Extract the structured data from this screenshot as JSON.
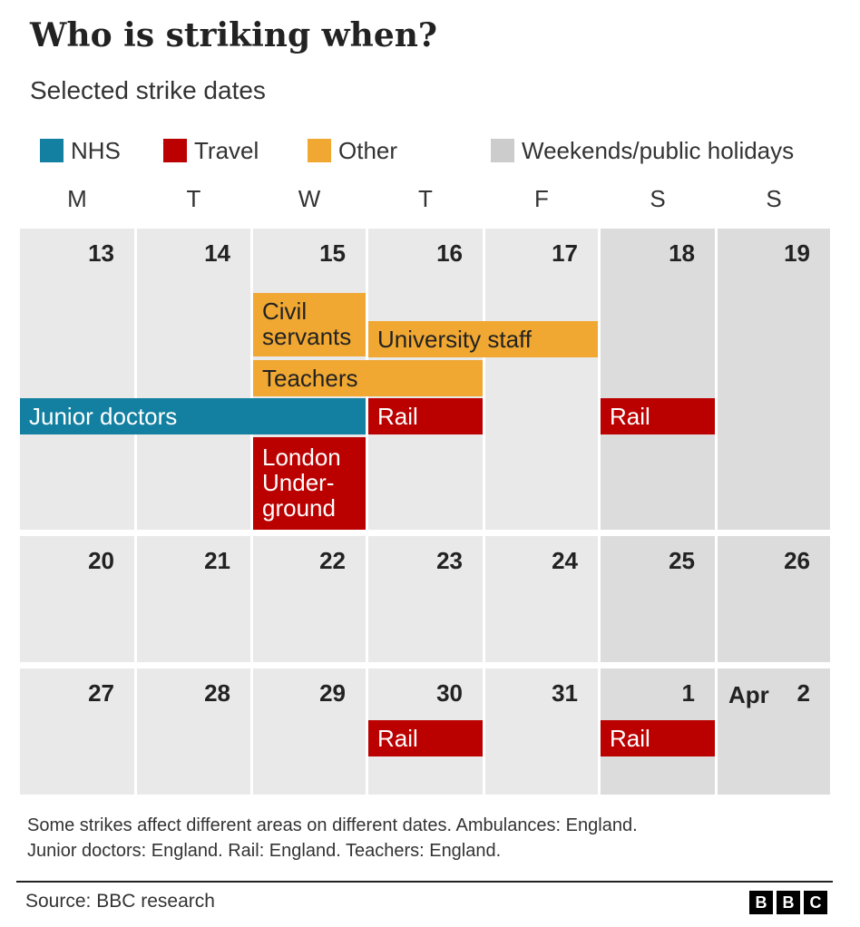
{
  "title": "Who is striking when?",
  "subtitle": "Selected strike dates",
  "legend": [
    {
      "label": "NHS",
      "color": "#1380a1"
    },
    {
      "label": "Travel",
      "color": "#bb0000"
    },
    {
      "label": "Other",
      "color": "#f0a832"
    },
    {
      "label": "Weekends/public holidays",
      "color": "#cccccc"
    }
  ],
  "weekdays": [
    "M",
    "T",
    "W",
    "T",
    "F",
    "S",
    "S"
  ],
  "weeks": [
    {
      "days": [
        "13",
        "14",
        "15",
        "16",
        "17",
        "18",
        "19"
      ]
    },
    {
      "days": [
        "20",
        "21",
        "22",
        "23",
        "24",
        "25",
        "26"
      ]
    },
    {
      "days": [
        "27",
        "28",
        "29",
        "30",
        "31",
        "1",
        "2"
      ]
    }
  ],
  "month_marker": "Apr",
  "colors": {
    "weekday_cell": "#e9e9e9",
    "weekend_cell": "#dcdcdc",
    "NHS": "#1380a1",
    "Travel": "#bb0000",
    "Other": "#f0a832"
  },
  "chart_data": {
    "type": "calendar",
    "title": "Who is striking when?",
    "subtitle": "Selected strike dates",
    "events": [
      {
        "label": "Civil servants",
        "category": "Other",
        "week": 0,
        "start_day": 2,
        "end_day": 2
      },
      {
        "label": "University staff",
        "category": "Other",
        "week": 0,
        "start_day": 3,
        "end_day": 4
      },
      {
        "label": "Teachers",
        "category": "Other",
        "week": 0,
        "start_day": 2,
        "end_day": 3
      },
      {
        "label": "Junior doctors",
        "category": "NHS",
        "week": 0,
        "start_day": 0,
        "end_day": 2
      },
      {
        "label": "Rail",
        "category": "Travel",
        "week": 0,
        "start_day": 3,
        "end_day": 3
      },
      {
        "label": "Rail",
        "category": "Travel",
        "week": 0,
        "start_day": 5,
        "end_day": 5
      },
      {
        "label": "London Under- ground",
        "category": "Travel",
        "week": 0,
        "start_day": 2,
        "end_day": 2
      },
      {
        "label": "Rail",
        "category": "Travel",
        "week": 2,
        "start_day": 3,
        "end_day": 3
      },
      {
        "label": "Rail",
        "category": "Travel",
        "week": 2,
        "start_day": 5,
        "end_day": 5
      }
    ]
  },
  "notes": [
    "Some strikes affect different areas on different dates. Ambulances: England.",
    "Junior doctors: England. Rail: England. Teachers: England."
  ],
  "source": "Source: BBC research",
  "logo_letters": [
    "B",
    "B",
    "C"
  ]
}
